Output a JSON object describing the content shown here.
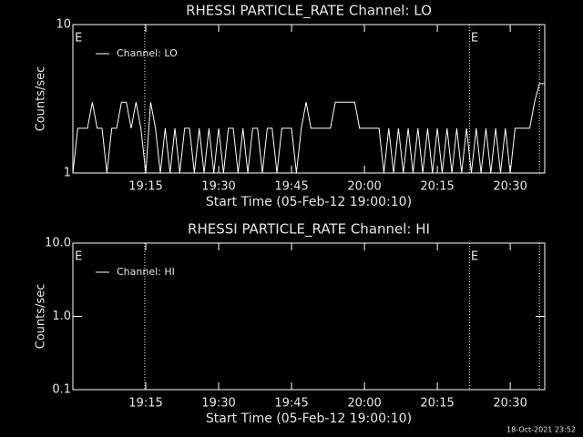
{
  "chart_data": [
    {
      "type": "line",
      "title": "RHESSI PARTICLE_RATE Channel: LO",
      "ylabel": "Counts/sec",
      "xlabel": "Start Time (05-Feb-12 19:00:10)",
      "log_y": true,
      "color": "#ffffff",
      "legend": "upper left",
      "xlim": [
        0,
        97.1
      ],
      "xticks": [
        {
          "value": 15,
          "label": "19:15"
        },
        {
          "value": 30,
          "label": "19:30"
        },
        {
          "value": 45,
          "label": "19:45"
        },
        {
          "value": 60,
          "label": "20:00"
        },
        {
          "value": 75,
          "label": "20:15"
        },
        {
          "value": 90,
          "label": "20:30"
        }
      ],
      "ylim": [
        1,
        10
      ],
      "yticks": [
        1,
        10
      ],
      "vlines": [
        14.8,
        81.6,
        96
      ],
      "annotations": [
        {
          "text": "E",
          "x": 0.4
        },
        {
          "text": "E",
          "x": 81.9
        }
      ],
      "x": [
        0,
        1,
        2,
        3,
        4,
        5,
        6,
        7,
        8,
        9,
        10,
        11,
        12,
        13,
        14,
        15,
        16,
        17,
        18,
        19,
        20,
        21,
        22,
        23,
        24,
        25,
        26,
        27,
        28,
        29,
        30,
        31,
        32,
        33,
        34,
        35,
        36,
        37,
        38,
        39,
        40,
        41,
        42,
        43,
        44,
        45,
        46,
        47,
        48,
        49,
        50,
        51,
        52,
        53,
        54,
        55,
        56,
        57,
        58,
        59,
        60,
        61,
        62,
        63,
        64,
        65,
        66,
        67,
        68,
        69,
        70,
        71,
        72,
        73,
        74,
        75,
        76,
        77,
        78,
        79,
        80,
        81,
        82,
        83,
        84,
        85,
        86,
        87,
        88,
        89,
        90,
        91,
        92,
        93,
        94,
        95,
        96,
        97
      ],
      "series": [
        {
          "name": "Channel: LO",
          "color": "#ffffff",
          "values": [
            1,
            2,
            2,
            2,
            3,
            2,
            2,
            1,
            2,
            2,
            3,
            3,
            2,
            3,
            2,
            1,
            3,
            2,
            1,
            2,
            1,
            2,
            1,
            2,
            2,
            1,
            2,
            1,
            2,
            1,
            2,
            1,
            2,
            2,
            1,
            2,
            1,
            2,
            2,
            1,
            2,
            2,
            1,
            2,
            2,
            2,
            1,
            2,
            3,
            2,
            2,
            2,
            2,
            2,
            3,
            3,
            3,
            3,
            3,
            2,
            2,
            2,
            2,
            2,
            1,
            2,
            1,
            2,
            1,
            2,
            1,
            2,
            1,
            2,
            1,
            2,
            1,
            2,
            1,
            2,
            1,
            2,
            1,
            2,
            1,
            2,
            1,
            2,
            1,
            2,
            1,
            2,
            2,
            2,
            2,
            3,
            4,
            4
          ]
        }
      ]
    },
    {
      "type": "line",
      "title": "RHESSI PARTICLE_RATE Channel: HI",
      "ylabel": "Counts/sec",
      "xlabel": "Start Time (05-Feb-12 19:00:10)",
      "log_y": true,
      "color": "#ffffff",
      "legend": "upper left",
      "xlim": [
        0,
        97.1
      ],
      "xticks": [
        {
          "value": 15,
          "label": "19:15"
        },
        {
          "value": 30,
          "label": "19:30"
        },
        {
          "value": 45,
          "label": "19:45"
        },
        {
          "value": 60,
          "label": "20:00"
        },
        {
          "value": 75,
          "label": "20:15"
        },
        {
          "value": 90,
          "label": "20:30"
        }
      ],
      "ylim": [
        0.1,
        10
      ],
      "yticks": [
        {
          "value": 0.1,
          "label": "0.1"
        },
        {
          "value": 1,
          "label": "1.0"
        },
        {
          "value": 10,
          "label": "10.0"
        }
      ],
      "vlines": [
        14.8,
        81.6,
        96
      ],
      "annotations": [
        {
          "text": "E",
          "x": 0.4
        },
        {
          "text": "E",
          "x": 81.9
        }
      ],
      "x": [],
      "series": [
        {
          "name": "Channel: HI",
          "color": "#ffffff",
          "values": []
        }
      ]
    }
  ],
  "footer": "18-Oct-2021 23:52"
}
